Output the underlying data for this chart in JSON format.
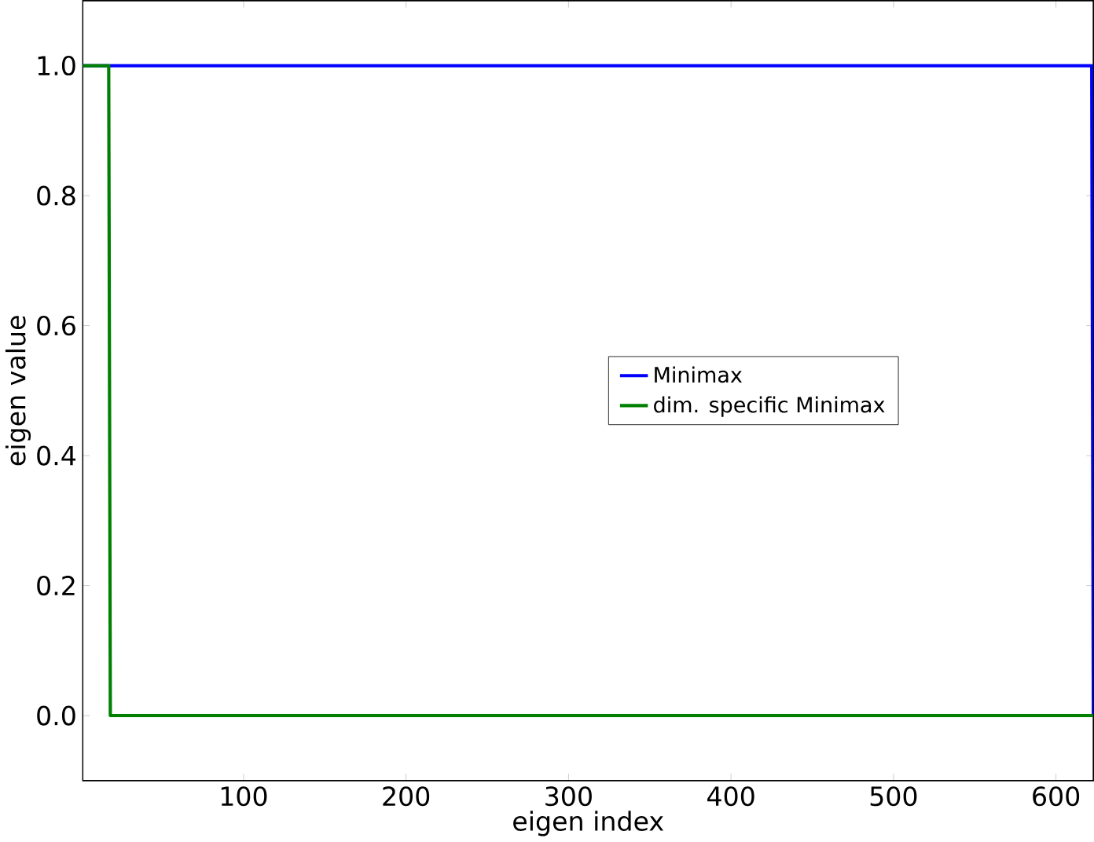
{
  "chart_data": {
    "type": "line",
    "xlabel": "eigen index",
    "ylabel": "eigen value",
    "xlim": [
      1,
      623
    ],
    "ylim": [
      -0.1,
      1.1
    ],
    "xticks": [
      100,
      200,
      300,
      400,
      500,
      600
    ],
    "yticks": [
      {
        "value": 0,
        "label": "0.0"
      },
      {
        "value": 0.2,
        "label": "0.2"
      },
      {
        "value": 0.4,
        "label": "0.4"
      },
      {
        "value": 0.6,
        "label": "0.6"
      },
      {
        "value": 0.8,
        "label": "0.8"
      },
      {
        "value": 1.0,
        "label": "1.0"
      }
    ],
    "grid": false,
    "legend": "right",
    "marker": "none",
    "line_style": "solid",
    "series": [
      {
        "name": "Minimax",
        "color": "#0000ff",
        "x": [
          1,
          622,
          623
        ],
        "values": [
          1,
          1,
          0
        ]
      },
      {
        "name": "dim. specific Minimax",
        "color": "#008000",
        "x": [
          1,
          17,
          18,
          623
        ],
        "values": [
          1,
          1,
          0,
          0
        ]
      }
    ]
  }
}
